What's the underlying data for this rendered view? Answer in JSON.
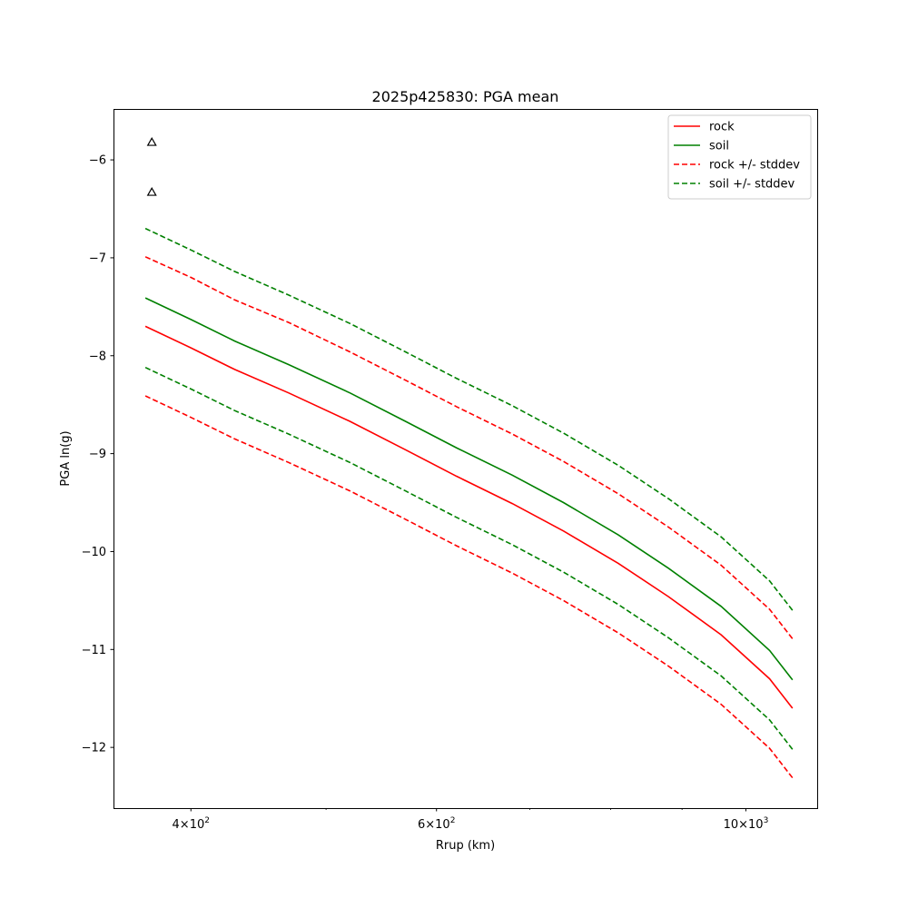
{
  "chart_data": {
    "type": "line",
    "title": "2025p425830: PGA mean",
    "xlabel": "Rrup (km)",
    "ylabel": "PGA ln(g)",
    "xscale": "log",
    "xlim": [
      352,
      1125
    ],
    "ylim": [
      -12.62,
      -5.48
    ],
    "grid": false,
    "legend_position": "top-right",
    "x_ticks": [
      {
        "value": 400,
        "base": "4",
        "exp": "2"
      },
      {
        "value": 600,
        "base": "6",
        "exp": "2"
      },
      {
        "value": 1000,
        "base": "10",
        "exp": "3"
      }
    ],
    "x_minor_ticks": [
      500,
      700,
      800,
      900
    ],
    "y_ticks": [
      {
        "value": -6,
        "label": "−6"
      },
      {
        "value": -7,
        "label": "−7"
      },
      {
        "value": -8,
        "label": "−8"
      },
      {
        "value": -9,
        "label": "−9"
      },
      {
        "value": -10,
        "label": "−10"
      },
      {
        "value": -11,
        "label": "−11"
      },
      {
        "value": -12,
        "label": "−12"
      }
    ],
    "x": [
      371,
      400,
      430,
      470,
      520,
      570,
      620,
      680,
      740,
      810,
      880,
      960,
      1040,
      1080
    ],
    "series": [
      {
        "name": "rock",
        "color": "#ff0000",
        "dashed": false,
        "values": [
          -7.7,
          -7.92,
          -8.14,
          -8.38,
          -8.67,
          -8.96,
          -9.23,
          -9.51,
          -9.79,
          -10.12,
          -10.46,
          -10.85,
          -11.3,
          -11.6
        ]
      },
      {
        "name": "soil",
        "color": "#008000",
        "dashed": false,
        "values": [
          -7.41,
          -7.63,
          -7.85,
          -8.09,
          -8.38,
          -8.67,
          -8.94,
          -9.22,
          -9.5,
          -9.83,
          -10.17,
          -10.56,
          -11.01,
          -11.31
        ]
      },
      {
        "name": "rock +/- stddev",
        "color": "#ff0000",
        "dashed": true,
        "values": [
          -6.99,
          -7.2,
          -7.43,
          -7.66,
          -7.96,
          -8.25,
          -8.52,
          -8.8,
          -9.08,
          -9.41,
          -9.75,
          -10.14,
          -10.59,
          -10.89
        ]
      },
      {
        "name": "",
        "color": "#ff0000",
        "dashed": true,
        "legend": false,
        "values": [
          -8.41,
          -8.63,
          -8.85,
          -9.09,
          -9.38,
          -9.67,
          -9.94,
          -10.22,
          -10.5,
          -10.83,
          -11.17,
          -11.56,
          -12.01,
          -12.31
        ]
      },
      {
        "name": "soil +/- stddev",
        "color": "#008000",
        "dashed": true,
        "values": [
          -6.7,
          -6.92,
          -7.14,
          -7.38,
          -7.67,
          -7.96,
          -8.23,
          -8.51,
          -8.79,
          -9.12,
          -9.46,
          -9.85,
          -10.3,
          -10.6
        ]
      },
      {
        "name": "",
        "color": "#008000",
        "dashed": true,
        "legend": false,
        "values": [
          -8.12,
          -8.34,
          -8.56,
          -8.8,
          -9.09,
          -9.38,
          -9.65,
          -9.93,
          -10.21,
          -10.54,
          -10.88,
          -11.27,
          -11.72,
          -12.02
        ]
      }
    ],
    "observations": {
      "marker": "triangle",
      "color": "#000000",
      "points": [
        {
          "x": 375,
          "y": -5.82
        },
        {
          "x": 375,
          "y": -6.33
        }
      ]
    }
  }
}
